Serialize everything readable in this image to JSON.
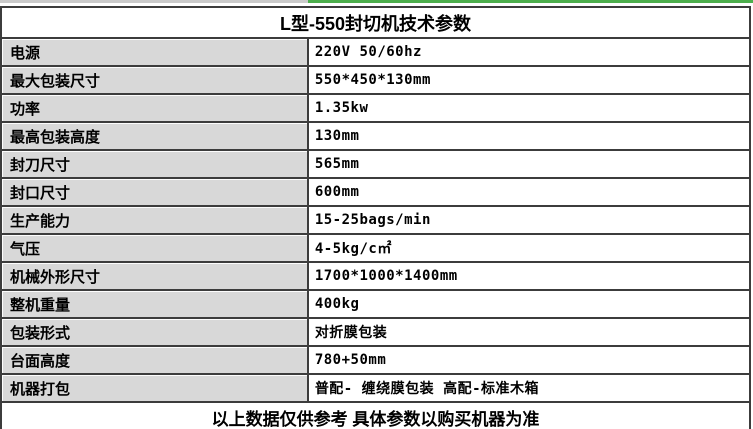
{
  "top_line": {
    "gray_color": "#cacaca",
    "green_color": "#4cae4c"
  },
  "table": {
    "title": "L型-550封切机技术参数",
    "rows": [
      {
        "label": "电源",
        "value": "220V 50/60hz"
      },
      {
        "label": "最大包装尺寸",
        "value": "550*450*130mm"
      },
      {
        "label": "功率",
        "value": "1.35kw"
      },
      {
        "label": "最高包装高度",
        "value": "130mm"
      },
      {
        "label": "封刀尺寸",
        "value": "565mm"
      },
      {
        "label": "封口尺寸",
        "value": "600mm"
      },
      {
        "label": "生产能力",
        "value": "15-25bags/min"
      },
      {
        "label": "气压",
        "value": "4-5kg/c㎡"
      },
      {
        "label": "机械外形尺寸",
        "value": "1700*1000*1400mm"
      },
      {
        "label": "整机重量",
        "value": "400kg"
      },
      {
        "label": "包装形式",
        "value": "对折膜包装"
      },
      {
        "label": "台面高度",
        "value": "780+50mm"
      },
      {
        "label": "机器打包",
        "value": "普配- 缠绕膜包装 高配-标准木箱"
      }
    ],
    "footer": "以上数据仅供参考 具体参数以购买机器为准"
  },
  "colors": {
    "label_bg": "#d8d8d8",
    "border": "#3c3c3c"
  }
}
